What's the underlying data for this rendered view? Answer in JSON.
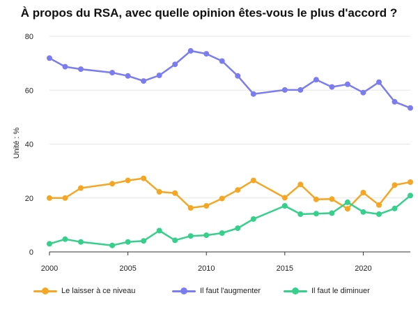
{
  "title": "À propos du RSA, avec quelle opinion êtes-vous le plus d'accord ?",
  "chart_data": {
    "type": "line",
    "title": "À propos du RSA, avec quelle opinion êtes-vous le plus d'accord ?",
    "xlabel": "",
    "ylabel": "Unité : %",
    "xlim": [
      2000,
      2023
    ],
    "ylim": [
      0,
      80
    ],
    "x_ticks": [
      2000,
      2005,
      2010,
      2015,
      2020
    ],
    "y_ticks": [
      0,
      20,
      40,
      60,
      80
    ],
    "grid": "horizontal",
    "legend_position": "bottom",
    "series": [
      {
        "name": "Le laisser à ce niveau",
        "color": "#f5a623",
        "points": [
          [
            2000,
            20
          ],
          [
            2001,
            20
          ],
          [
            2002,
            23.7
          ],
          [
            2004,
            25.3
          ],
          [
            2005,
            26.5
          ],
          [
            2006,
            27.3
          ],
          [
            2007,
            22.3
          ],
          [
            2008,
            21.8
          ],
          [
            2009,
            16.3
          ],
          [
            2010,
            17.1
          ],
          [
            2011,
            19.8
          ],
          [
            2012,
            23
          ],
          [
            2013,
            26.5
          ],
          [
            2015,
            20.1
          ],
          [
            2016,
            25
          ],
          [
            2017,
            19.5
          ],
          [
            2018,
            19.6
          ],
          [
            2019,
            16
          ],
          [
            2020,
            22
          ],
          [
            2021,
            17.4
          ],
          [
            2022,
            24.8
          ],
          [
            2023,
            25.9
          ]
        ]
      },
      {
        "name": "Il faut l'augmenter",
        "color": "#7b7cf0",
        "points": [
          [
            2000,
            71.9
          ],
          [
            2001,
            68.7
          ],
          [
            2002,
            67.8
          ],
          [
            2004,
            66.5
          ],
          [
            2005,
            65.3
          ],
          [
            2006,
            63.4
          ],
          [
            2007,
            65.5
          ],
          [
            2008,
            69.6
          ],
          [
            2009,
            74.6
          ],
          [
            2010,
            73.5
          ],
          [
            2011,
            70.8
          ],
          [
            2012,
            65.3
          ],
          [
            2013,
            58.6
          ],
          [
            2015,
            60.1
          ],
          [
            2016,
            60.1
          ],
          [
            2017,
            63.9
          ],
          [
            2018,
            61.2
          ],
          [
            2019,
            62.2
          ],
          [
            2020,
            59.1
          ],
          [
            2021,
            63
          ],
          [
            2022,
            55.7
          ],
          [
            2023,
            53.4
          ]
        ]
      },
      {
        "name": "Il faut le diminuer",
        "color": "#35d08b",
        "points": [
          [
            2000,
            3
          ],
          [
            2001,
            4.7
          ],
          [
            2002,
            3.7
          ],
          [
            2004,
            2.4
          ],
          [
            2005,
            3.7
          ],
          [
            2006,
            4.1
          ],
          [
            2007,
            7.9
          ],
          [
            2008,
            4.3
          ],
          [
            2009,
            5.9
          ],
          [
            2010,
            6.2
          ],
          [
            2011,
            7
          ],
          [
            2012,
            8.8
          ],
          [
            2013,
            12.2
          ],
          [
            2015,
            17.1
          ],
          [
            2016,
            14
          ],
          [
            2017,
            14.2
          ],
          [
            2018,
            14.4
          ],
          [
            2019,
            18.4
          ],
          [
            2020,
            14.8
          ],
          [
            2021,
            14
          ],
          [
            2022,
            16.1
          ],
          [
            2023,
            20.9
          ]
        ]
      }
    ]
  }
}
